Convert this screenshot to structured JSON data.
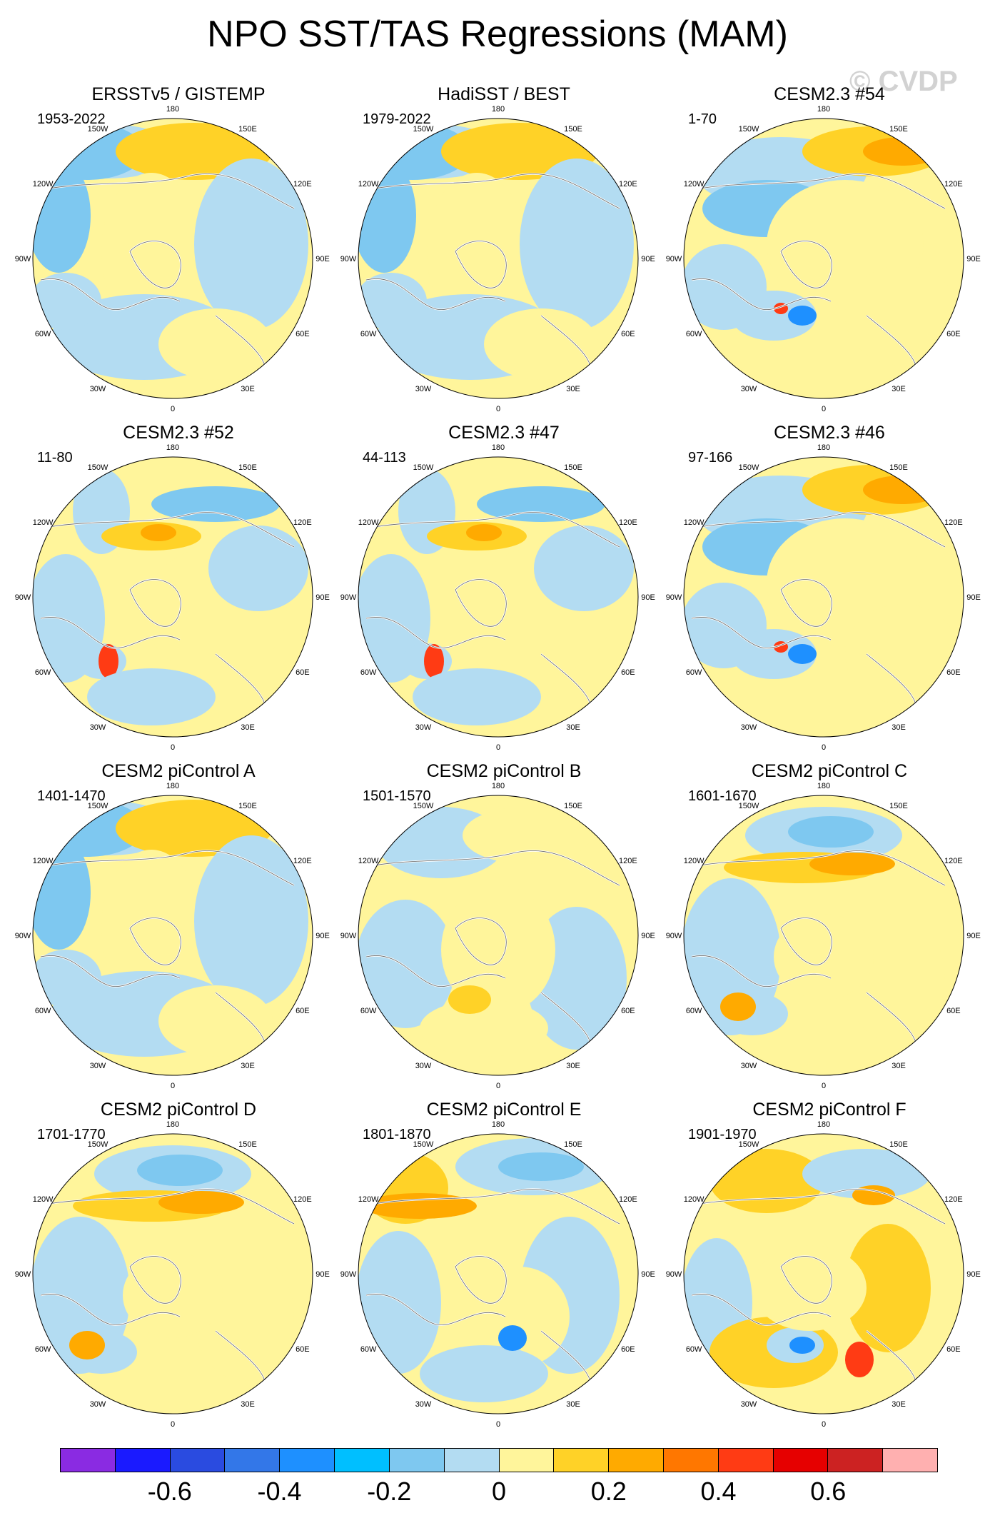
{
  "title": "NPO SST/TAS Regressions (MAM)",
  "watermark": "© CVDP",
  "lon_labels": [
    "180",
    "150E",
    "120E",
    "90E",
    "60E",
    "30E",
    "0",
    "30W",
    "60W",
    "90W",
    "120W",
    "150W"
  ],
  "panels": [
    {
      "title": "ERSSTv5 / GISTEMP",
      "years": "1953-2022",
      "pattern": "obs"
    },
    {
      "title": "HadiSST / BEST",
      "years": "1979-2022",
      "pattern": "obs"
    },
    {
      "title": "CESM2.3 #54",
      "years": "1-70",
      "pattern": "a"
    },
    {
      "title": "CESM2.3 #52",
      "years": "11-80",
      "pattern": "b"
    },
    {
      "title": "CESM2.3 #47",
      "years": "44-113",
      "pattern": "b"
    },
    {
      "title": "CESM2.3 #46",
      "years": "97-166",
      "pattern": "a"
    },
    {
      "title": "CESM2 piControl A",
      "years": "1401-1470",
      "pattern": "obs"
    },
    {
      "title": "CESM2 piControl B",
      "years": "1501-1570",
      "pattern": "weak"
    },
    {
      "title": "CESM2 piControl C",
      "years": "1601-1670",
      "pattern": "c"
    },
    {
      "title": "CESM2 piControl D",
      "years": "1701-1770",
      "pattern": "c"
    },
    {
      "title": "CESM2 piControl E",
      "years": "1801-1870",
      "pattern": "e"
    },
    {
      "title": "CESM2 piControl F",
      "years": "1901-1970",
      "pattern": "f"
    }
  ],
  "colorbar": {
    "colors": [
      "#8a2be2",
      "#1a1aff",
      "#2a4be0",
      "#3377e8",
      "#1e90ff",
      "#00bfff",
      "#7ec8f0",
      "#b3dcf2",
      "#fff59b",
      "#ffd227",
      "#ffaa00",
      "#ff7700",
      "#ff3b14",
      "#e60000",
      "#cc2222",
      "#ffb0b0"
    ],
    "tick_labels": [
      "-0.6",
      "-0.4",
      "-0.2",
      "0",
      "0.2",
      "0.4",
      "0.6"
    ]
  },
  "palette": {
    "light_blue": "#b3dcf2",
    "mid_blue": "#7ec8f0",
    "blue": "#1e90ff",
    "yellow": "#fff59b",
    "gold": "#ffd227",
    "orange": "#ffaa00",
    "red": "#ff3b14"
  }
}
